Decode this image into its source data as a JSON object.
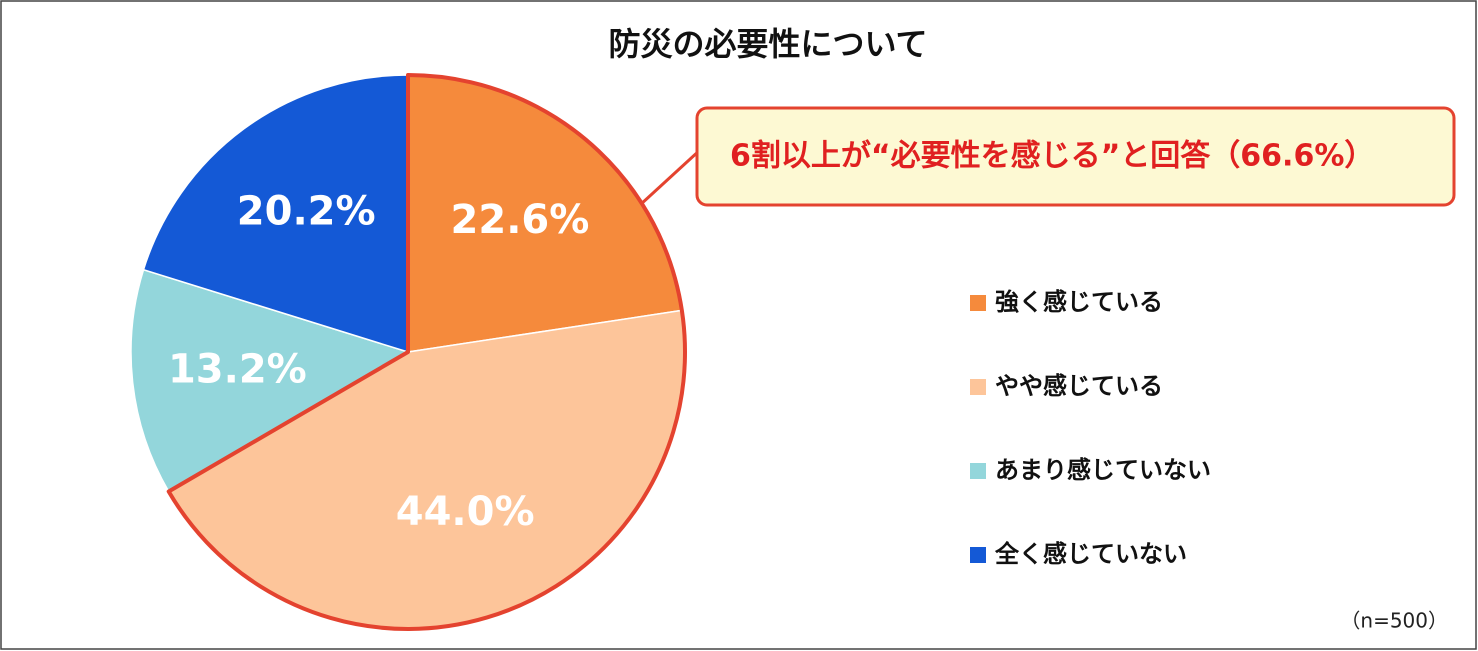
{
  "chart_data": {
    "type": "pie",
    "title": "防災の必要性について",
    "categories": [
      "強く感じている",
      "やや感じている",
      "あまり感じていない",
      "全く感じていない"
    ],
    "values": [
      22.6,
      44.0,
      13.2,
      20.2
    ],
    "value_labels": [
      "22.6%",
      "44.0%",
      "13.2%",
      "20.2%"
    ],
    "colors": [
      "#f58a3c",
      "#fdc59a",
      "#93d6db",
      "#1459d6"
    ],
    "annotation": "6割以上が“必要性を感じる”と回答（66.6%）",
    "note": "（n=500）",
    "legend": "right"
  }
}
